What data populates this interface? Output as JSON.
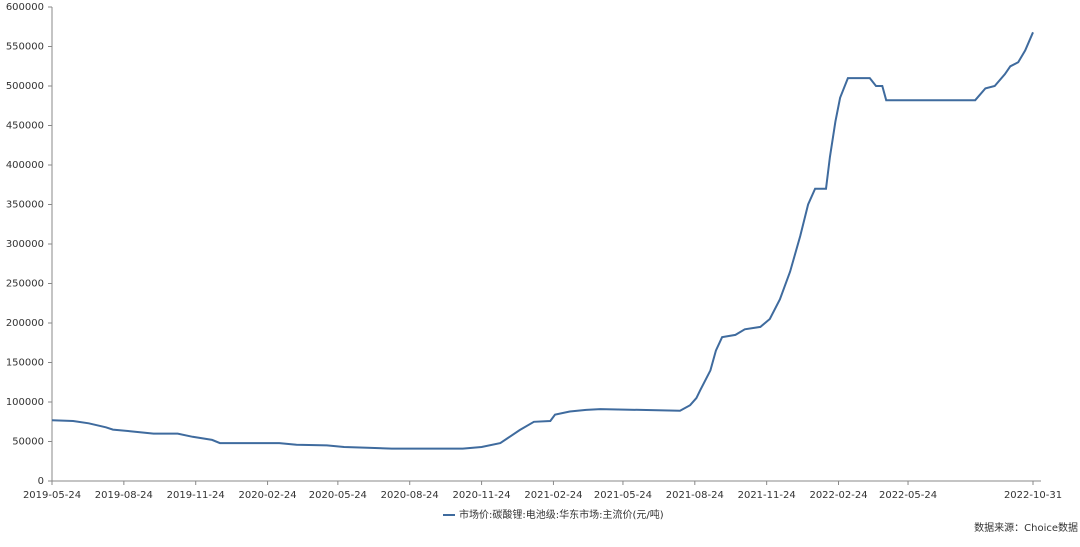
{
  "chart_data": {
    "type": "line",
    "x": [
      "2019-05-24",
      "2019-06-20",
      "2019-07-10",
      "2019-08-01",
      "2019-08-10",
      "2019-09-01",
      "2019-09-20",
      "2019-10-01",
      "2019-11-01",
      "2019-11-20",
      "2019-12-15",
      "2019-12-25",
      "2020-03-10",
      "2020-04-01",
      "2020-05-10",
      "2020-06-01",
      "2020-07-01",
      "2020-08-01",
      "2020-10-31",
      "2020-11-24",
      "2020-12-18",
      "2021-01-12",
      "2021-01-30",
      "2021-02-20",
      "2021-02-26",
      "2021-03-17",
      "2021-04-07",
      "2021-04-25",
      "2021-08-05",
      "2021-08-18",
      "2021-08-26",
      "2021-08-31",
      "2021-09-13",
      "2021-09-20",
      "2021-09-28",
      "2021-10-15",
      "2021-10-27",
      "2021-11-16",
      "2021-11-28",
      "2021-12-11",
      "2021-12-24",
      "2022-01-06",
      "2022-01-16",
      "2022-01-25",
      "2022-02-08",
      "2022-02-13",
      "2022-02-20",
      "2022-02-26",
      "2022-03-08",
      "2022-04-05",
      "2022-04-13",
      "2022-04-21",
      "2022-04-26",
      "2022-08-18",
      "2022-08-31",
      "2022-09-12",
      "2022-09-25",
      "2022-10-02",
      "2022-10-12",
      "2022-10-21",
      "2022-10-31"
    ],
    "series": [
      {
        "name": "市场价:碳酸锂:电池级:华东市场:主流价(元/吨)",
        "color": "#3f6b9e",
        "values": [
          77000,
          76000,
          73000,
          68000,
          65000,
          63000,
          61000,
          60000,
          60000,
          56000,
          52000,
          48000,
          48000,
          46000,
          45000,
          43000,
          42000,
          41000,
          41000,
          43000,
          48000,
          64500,
          75000,
          76000,
          84000,
          88000,
          90000,
          91000,
          89000,
          96000,
          105000,
          115000,
          140000,
          165000,
          182000,
          185000,
          192000,
          195000,
          205000,
          230000,
          265000,
          310000,
          350000,
          370000,
          370000,
          410000,
          455000,
          485000,
          510000,
          510000,
          500000,
          500000,
          482000,
          482000,
          497000,
          500000,
          515000,
          525000,
          530000,
          545000,
          568000
        ]
      }
    ],
    "xlim": [
      "2019-05-24",
      "2022-10-31"
    ],
    "xticks": [
      "2019-05-24",
      "2019-08-24",
      "2019-11-24",
      "2020-02-24",
      "2020-05-24",
      "2020-08-24",
      "2020-11-24",
      "2021-02-24",
      "2021-05-24",
      "2021-08-24",
      "2021-11-24",
      "2022-02-24",
      "2022-05-24",
      "2022-10-31"
    ],
    "ylim": [
      0,
      600000
    ],
    "yticks": [
      0,
      50000,
      100000,
      150000,
      200000,
      250000,
      300000,
      350000,
      400000,
      450000,
      500000,
      550000,
      600000
    ],
    "grid": false,
    "source": "数据来源：Choice数据"
  }
}
